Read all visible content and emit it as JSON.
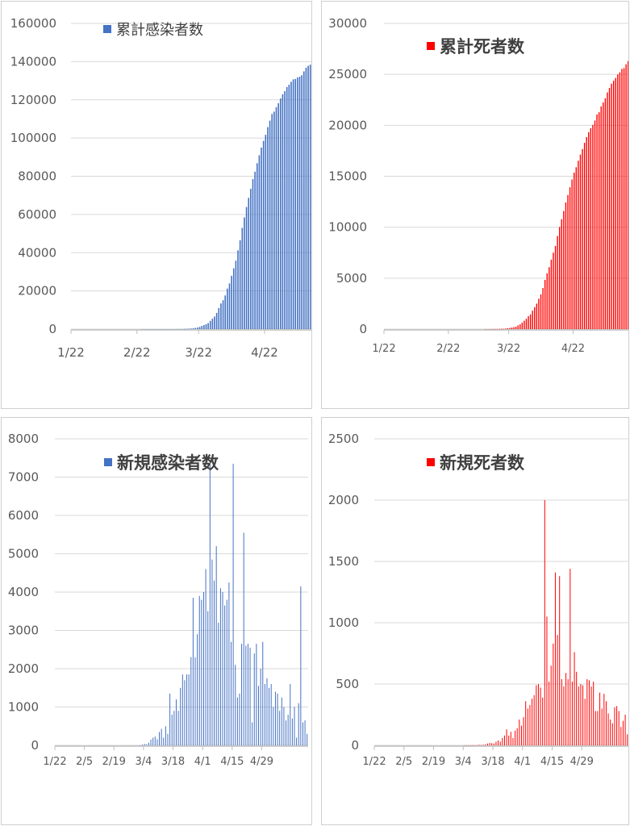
{
  "chart_data": [
    {
      "type": "bar",
      "legend": "累計感染者数",
      "color": "#4472C4",
      "ylim": [
        0,
        160000
      ],
      "yticks": [
        0,
        20000,
        40000,
        60000,
        80000,
        100000,
        120000,
        140000,
        160000
      ],
      "xticks": [
        "1/22",
        "2/22",
        "3/22",
        "4/22"
      ],
      "start_date": "2020-01-22",
      "series": [
        {
          "name": "累計感染者数",
          "values": [
            0,
            0,
            0,
            0,
            0,
            0,
            0,
            0,
            0,
            0,
            0,
            0,
            0,
            0,
            0,
            0,
            0,
            0,
            0,
            0,
            0,
            0,
            0,
            0,
            0,
            0,
            0,
            0,
            0,
            0,
            0,
            0,
            0,
            3,
            3,
            3,
            3,
            3,
            3,
            3,
            3,
            3,
            3,
            3,
            4,
            4,
            7,
            9,
            16,
            28,
            46,
            60,
            82,
            125,
            195,
            250,
            320,
            490,
            600,
            850,
            1150,
            1650,
            2100,
            2550,
            3150,
            4300,
            5450,
            6600,
            8500,
            11000,
            13400,
            15100,
            17600,
            21200,
            23900,
            27900,
            31800,
            35800,
            41200,
            46500,
            53000,
            58500,
            63900,
            68700,
            73400,
            78500,
            82400,
            86800,
            91000,
            95000,
            98500,
            101700,
            105700,
            109100,
            112600,
            113800,
            116100,
            118200,
            120700,
            122900,
            124500,
            126700,
            127900,
            129400,
            130700,
            130900,
            131700,
            132100,
            132900,
            134900,
            136800,
            137800,
            138400
          ]
        }
      ]
    },
    {
      "type": "bar",
      "legend": "累計死者数",
      "color": "#FF0000",
      "ylim": [
        0,
        30000
      ],
      "yticks": [
        0,
        5000,
        10000,
        15000,
        20000,
        25000,
        30000
      ],
      "xticks": [
        "1/22",
        "2/22",
        "3/22",
        "4/22"
      ],
      "start_date": "2020-01-22",
      "series": [
        {
          "name": "累計死者数",
          "values": [
            0,
            0,
            0,
            0,
            0,
            0,
            0,
            0,
            0,
            0,
            0,
            0,
            0,
            0,
            0,
            0,
            0,
            0,
            0,
            0,
            0,
            0,
            0,
            0,
            0,
            0,
            0,
            0,
            0,
            0,
            0,
            0,
            0,
            0,
            0,
            0,
            0,
            0,
            0,
            0,
            0,
            0,
            0,
            0,
            0,
            0,
            0,
            0,
            1,
            2,
            3,
            7,
            10,
            12,
            17,
            21,
            29,
            34,
            52,
            79,
            107,
            148,
            197,
            233,
            366,
            463,
            631,
            827,
            1016,
            1266,
            1441,
            1809,
            2158,
            2503,
            2978,
            3405,
            4032,
            4825,
            5476,
            6077,
            6820,
            7503,
            8165,
            9134,
            10023,
            10779,
            11591,
            12428,
            13155,
            13915,
            14681,
            15362,
            15887,
            16523,
            17127,
            17669,
            18279,
            18849,
            19323,
            19718,
            20043,
            20465,
            21067,
            21282,
            21856,
            22245,
            22648,
            23227,
            23660,
            24087,
            24376,
            24648,
            24991,
            25201,
            25531,
            25613,
            25987,
            26310
          ]
        }
      ]
    },
    {
      "type": "bar",
      "legend": "新規感染者数",
      "color": "#4472C4",
      "ylim": [
        0,
        8000
      ],
      "yticks": [
        0,
        1000,
        2000,
        3000,
        4000,
        5000,
        6000,
        7000,
        8000
      ],
      "xticks": [
        "1/22",
        "2/5",
        "2/19",
        "3/4",
        "3/18",
        "4/1",
        "4/15",
        "4/29"
      ],
      "start_date": "2020-01-22",
      "series": [
        {
          "name": "新規感染者数",
          "values": [
            0,
            0,
            0,
            0,
            0,
            0,
            0,
            0,
            0,
            0,
            0,
            0,
            0,
            0,
            0,
            0,
            0,
            0,
            0,
            0,
            0,
            0,
            0,
            0,
            0,
            0,
            0,
            0,
            0,
            0,
            0,
            0,
            0,
            0,
            0,
            0,
            0,
            0,
            0,
            0,
            5,
            20,
            36,
            30,
            70,
            150,
            200,
            230,
            160,
            350,
            430,
            200,
            500,
            300,
            1350,
            800,
            900,
            1200,
            900,
            1500,
            1850,
            1700,
            1850,
            1850,
            2300,
            3850,
            2300,
            2900,
            3900,
            3800,
            4000,
            4600,
            3500,
            7350,
            4850,
            4300,
            5200,
            3200,
            4100,
            4000,
            3650,
            3800,
            4250,
            2700,
            7350,
            2100,
            1250,
            1350,
            2650,
            5550,
            2600,
            2650,
            2550,
            600,
            2400,
            2650,
            1550,
            2000,
            2700,
            1600,
            1750,
            1500,
            1600,
            1000,
            1400,
            1350,
            900,
            1250,
            1000,
            650,
            800,
            1600,
            700,
            1000,
            200,
            1100,
            4150,
            600,
            650,
            300
          ]
        }
      ]
    },
    {
      "type": "bar",
      "legend": "新規死者数",
      "color": "#FF0000",
      "ylim": [
        0,
        2500
      ],
      "yticks": [
        0,
        500,
        1000,
        1500,
        2000,
        2500
      ],
      "xticks": [
        "1/22",
        "2/5",
        "2/19",
        "3/4",
        "3/18",
        "4/1",
        "4/15",
        "4/29"
      ],
      "start_date": "2020-01-22",
      "series": [
        {
          "name": "新規死者数",
          "values": [
            0,
            0,
            0,
            0,
            0,
            0,
            0,
            0,
            0,
            0,
            0,
            0,
            0,
            0,
            0,
            0,
            0,
            0,
            0,
            0,
            0,
            0,
            0,
            0,
            0,
            0,
            0,
            0,
            0,
            0,
            0,
            0,
            0,
            0,
            0,
            0,
            0,
            0,
            0,
            0,
            0,
            0,
            1,
            1,
            1,
            1,
            2,
            1,
            2,
            5,
            3,
            5,
            8,
            15,
            20,
            18,
            15,
            30,
            40,
            30,
            60,
            80,
            130,
            80,
            110,
            60,
            120,
            140,
            210,
            160,
            230,
            360,
            300,
            330,
            380,
            410,
            490,
            500,
            470,
            390,
            2000,
            1050,
            520,
            650,
            830,
            1410,
            900,
            1380,
            540,
            480,
            590,
            540,
            1440,
            520,
            760,
            600,
            480,
            500,
            490,
            380,
            540,
            530,
            480,
            520,
            280,
            280,
            430,
            300,
            420,
            360,
            260,
            210,
            180,
            310,
            320,
            280,
            150,
            200,
            250,
            90
          ]
        }
      ]
    }
  ]
}
